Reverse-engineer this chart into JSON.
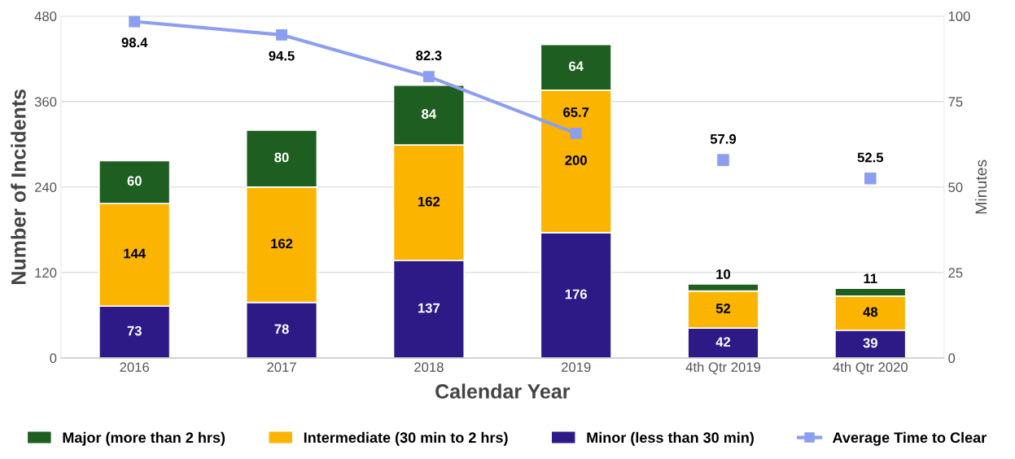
{
  "chart_data": {
    "type": "bar",
    "stacked": true,
    "xlabel": "Calendar Year",
    "ylabel": "Number of Incidents",
    "y2label": "Minutes",
    "categories": [
      "2016",
      "2017",
      "2018",
      "2019",
      "4th Qtr 2019",
      "4th Qtr 2020"
    ],
    "series": [
      {
        "name": "Minor (less than 30 min)",
        "color": "#2e1a87",
        "values": [
          73,
          78,
          137,
          176,
          42,
          39
        ]
      },
      {
        "name": "Intermediate (30 min to 2 hrs)",
        "color": "#fbb400",
        "values": [
          144,
          162,
          162,
          200,
          52,
          48
        ]
      },
      {
        "name": "Major (more than 2 hrs)",
        "color": "#1e5e20",
        "values": [
          60,
          80,
          84,
          64,
          10,
          11
        ]
      },
      {
        "name": "Average Time to Clear",
        "type": "line",
        "axis": "y2",
        "marker": "square",
        "color": "#8c9ef0",
        "values": [
          98.4,
          94.5,
          82.3,
          65.7,
          null,
          null
        ]
      },
      {
        "type": "scatter",
        "axis": "y2",
        "marker": "square",
        "color": "#8c9ef0",
        "values": [
          null,
          null,
          null,
          null,
          57.9,
          52.5
        ]
      }
    ],
    "ylim": [
      0,
      480
    ],
    "yticks": [
      0,
      120,
      240,
      360,
      480
    ],
    "y2lim": [
      0,
      100
    ],
    "y2ticks": [
      0,
      25,
      50,
      75,
      100
    ],
    "grid": "y",
    "legend": "bottom",
    "data_labels": true
  }
}
